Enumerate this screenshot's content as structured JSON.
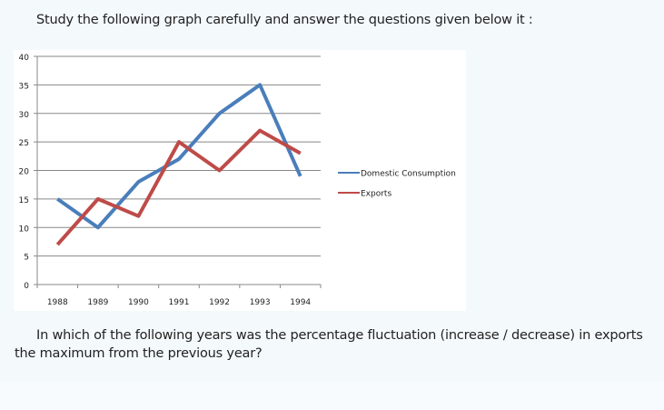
{
  "heading": "Study the following graph carefully and answer the questions given below it :",
  "question": "In which of the following years was the percentage fluctuation (increase / decrease) in exports the maximum from the previous year?",
  "chart_data": {
    "type": "line",
    "categories": [
      "1988",
      "1989",
      "1990",
      "1991",
      "1992",
      "1993",
      "1994"
    ],
    "series": [
      {
        "name": "Domestic Consumption",
        "color": "#4a7ebb",
        "values": [
          15,
          10,
          18,
          22,
          30,
          35,
          19
        ]
      },
      {
        "name": "Exports",
        "color": "#be4b48",
        "values": [
          7,
          15,
          12,
          25,
          20,
          27,
          23
        ]
      }
    ],
    "ylim": [
      0,
      40
    ],
    "yticks": [
      0,
      5,
      10,
      15,
      20,
      25,
      30,
      35,
      40
    ],
    "grid": true,
    "legend": "right"
  }
}
